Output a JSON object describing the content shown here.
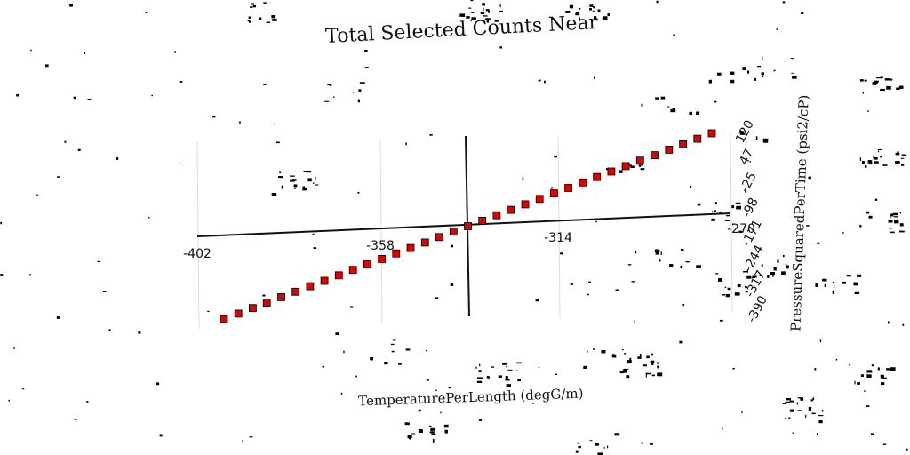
{
  "chart_data": {
    "type": "scatter",
    "title": "Total Selected Counts Near",
    "xlabel": "TemperaturePerLength (degG/m)",
    "ylabel": "PressureSquaredPerTime (psi2/cP)",
    "x_ticks": [
      "-402",
      "-358",
      "-314",
      "-270"
    ],
    "y_ticks": [
      "-390",
      "-317",
      "-244",
      "-171",
      "-98",
      "-25",
      "47",
      "120"
    ],
    "xlim": [
      -402,
      -270
    ],
    "ylim": [
      -390,
      120
    ],
    "grid": true,
    "marker_color": "#e00000",
    "series": [
      {
        "x": [
          -402,
          -398.1,
          -394.2,
          -390.4,
          -386.5,
          -382.6,
          -378.7,
          -374.8,
          -370.9,
          -367.1,
          -363.2,
          -359.3,
          -355.4,
          -351.5,
          -347.6,
          -343.8,
          -339.9,
          -336.0,
          -332.1,
          -328.2,
          -324.4,
          -320.5,
          -316.6,
          -312.7,
          -308.8,
          -304.9,
          -301.1,
          -297.2,
          -293.3,
          -289.4,
          -285.5,
          -281.6,
          -277.8,
          -273.9,
          -270.0
        ],
        "y": [
          -390,
          -375,
          -360,
          -345,
          -330,
          -315,
          -300,
          -285,
          -270,
          -255,
          -240,
          -225,
          -210,
          -195,
          -180,
          -165,
          -150,
          -135,
          -120,
          -105,
          -90,
          -75,
          -60,
          -45,
          -30,
          -15,
          0,
          15,
          30,
          45,
          60,
          75,
          90,
          105,
          120
        ]
      }
    ]
  }
}
